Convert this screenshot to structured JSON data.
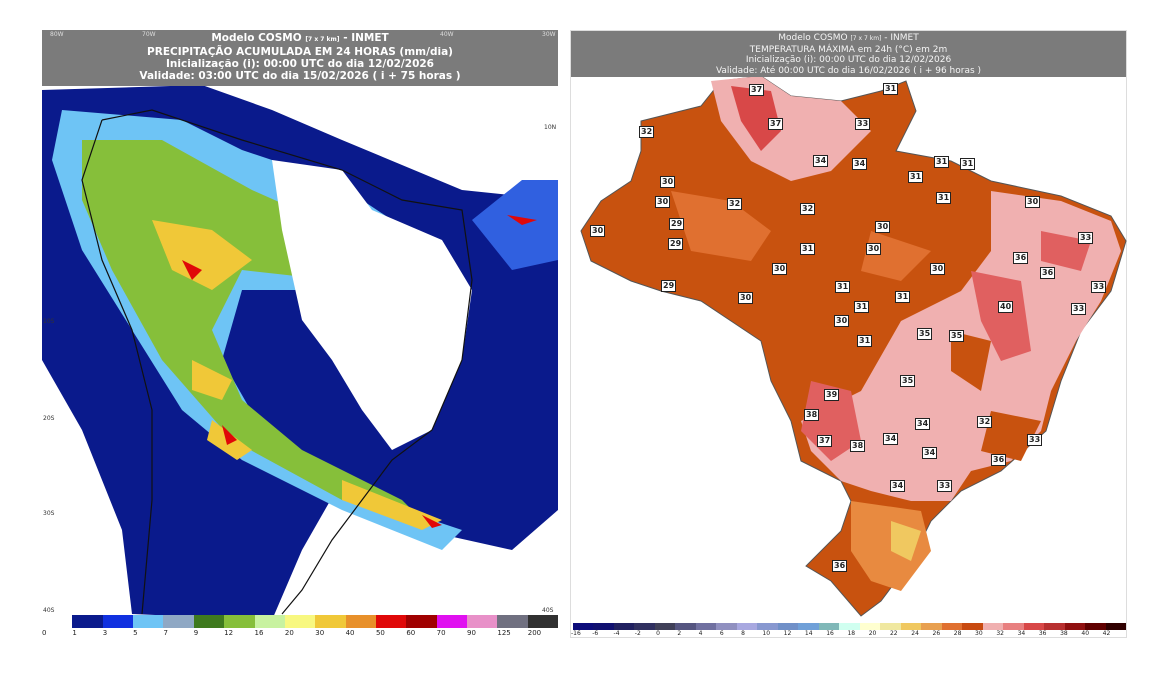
{
  "precip_map": {
    "title_lines": [
      "Modelo COSMO",
      "PRECIPITAÇÃO ACUMULADA EM 24 HORAS (mm/dia)",
      "Inicialização (i): 00:00 UTC do dia 12/02/2026",
      "Validade: 03:00 UTC do dia 15/02/2026 ( i + 75 horas )"
    ],
    "model_res": "[7 x 7 km]",
    "source": "- INMET",
    "lon_labels": [
      "80W",
      "70W",
      "40W",
      "30W"
    ],
    "lat_labels": [
      "10N",
      "10S",
      "20S",
      "30S",
      "40S",
      "40S"
    ],
    "colorbar_labels": [
      "0",
      "1",
      "3",
      "5",
      "7",
      "9",
      "12",
      "16",
      "20",
      "30",
      "40",
      "50",
      "60",
      "70",
      "90",
      "125",
      "200"
    ],
    "colorbar_colors": [
      "#ffffff",
      "#0a1a8c",
      "#1030e0",
      "#6ec4f5",
      "#8fa8c4",
      "#3f7a1e",
      "#86bf3a",
      "#c8f2a0",
      "#f8f880",
      "#f0c838",
      "#e8902a",
      "#e00808",
      "#a00000",
      "#e010f0",
      "#e890c8",
      "#707080",
      "#303030"
    ]
  },
  "temp_map": {
    "title_lines": [
      "Modelo COSMO",
      "TEMPERATURA MÁXIMA em 24h (°C) em 2m",
      "Inicialização (i): 00:00 UTC do dia 12/02/2026",
      "Validade: Até 00:00 UTC do dia 16/02/2026 ( i + 96 horas )"
    ],
    "model_res": "[7 x 7 km]",
    "source": "- INMET",
    "colorbar_labels": [
      "-16",
      "-6",
      "-4",
      "-2",
      "0",
      "2",
      "4",
      "6",
      "8",
      "10",
      "12",
      "14",
      "16",
      "18",
      "20",
      "22",
      "24",
      "26",
      "28",
      "30",
      "32",
      "34",
      "36",
      "38",
      "40",
      "42"
    ],
    "colorbar_colors": [
      "#0c0c7a",
      "#101070",
      "#202060",
      "#303060",
      "#404058",
      "#555580",
      "#7070a0",
      "#9090c0",
      "#a8a8e0",
      "#8898d0",
      "#7090c8",
      "#70a0d8",
      "#80b8b8",
      "#d0fff0",
      "#ffffd0",
      "#f0e8a0",
      "#f0c860",
      "#e8a050",
      "#e07030",
      "#c84a10",
      "#f0b0b0",
      "#e88080",
      "#d84848",
      "#b83030",
      "#901010",
      "#600000",
      "#300000"
    ],
    "station_values": [
      "37",
      "37",
      "32",
      "34",
      "33",
      "31",
      "34",
      "31",
      "31",
      "31",
      "31",
      "30",
      "30",
      "32",
      "32",
      "29",
      "29",
      "30",
      "30",
      "30",
      "31",
      "30",
      "30",
      "33",
      "36",
      "36",
      "33",
      "29",
      "30",
      "30",
      "31",
      "31",
      "31",
      "30",
      "31",
      "40",
      "33",
      "35",
      "35",
      "35",
      "39",
      "38",
      "37",
      "38",
      "34",
      "34",
      "34",
      "32",
      "33",
      "36",
      "34",
      "33",
      "36"
    ]
  }
}
